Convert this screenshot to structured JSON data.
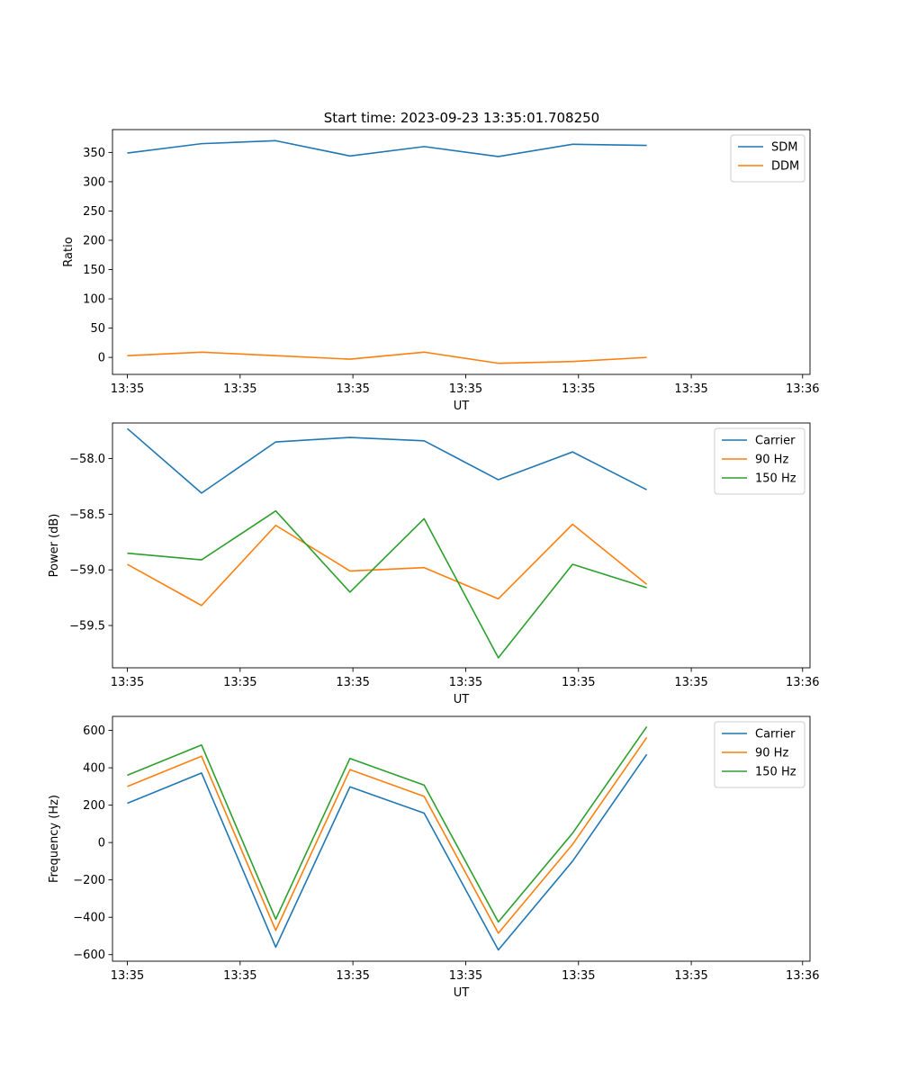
{
  "figure_title": "Start time: 2023-09-23 13:35:01.708250",
  "colors": {
    "blue": "#1f77b4",
    "orange": "#ff7f0e",
    "green": "#2ca02c"
  },
  "chart_data": [
    {
      "type": "line",
      "title": "Start time: 2023-09-23 13:35:01.708250",
      "xlabel": "UT",
      "ylabel": "Ratio",
      "x": [
        1,
        2,
        3,
        4,
        5,
        6,
        7,
        8
      ],
      "xlim": [
        0.8,
        10.2
      ],
      "xticks": [
        1,
        2.52,
        4.04,
        5.56,
        7.08,
        8.6,
        10.1
      ],
      "xtick_labels": [
        "13:35",
        "13:35",
        "13:35",
        "13:35",
        "13:35",
        "13:35",
        "13:36"
      ],
      "ylim": [
        -29,
        389
      ],
      "yticks": [
        0,
        50,
        100,
        150,
        200,
        250,
        300,
        350
      ],
      "ytick_labels": [
        "0",
        "50",
        "100",
        "150",
        "200",
        "250",
        "300",
        "350"
      ],
      "legend_position": "upper-right",
      "series": [
        {
          "name": "SDM",
          "color": "#1f77b4",
          "values": [
            349,
            365,
            370,
            344,
            360,
            343,
            364,
            362
          ]
        },
        {
          "name": "DDM",
          "color": "#ff7f0e",
          "values": [
            3,
            9,
            3,
            -3,
            9,
            -10,
            -7,
            0
          ]
        }
      ]
    },
    {
      "type": "line",
      "title": "",
      "xlabel": "UT",
      "ylabel": "Power (dB)",
      "x": [
        1,
        2,
        3,
        4,
        5,
        6,
        7,
        8
      ],
      "xlim": [
        0.8,
        10.2
      ],
      "xticks": [
        1,
        2.52,
        4.04,
        5.56,
        7.08,
        8.6,
        10.1
      ],
      "xtick_labels": [
        "13:35",
        "13:35",
        "13:35",
        "13:35",
        "13:35",
        "13:35",
        "13:36"
      ],
      "ylim": [
        -59.88,
        -57.68
      ],
      "yticks": [
        -59.5,
        -59.0,
        -58.5,
        -58.0
      ],
      "ytick_labels": [
        "−59.5",
        "−59.0",
        "−58.5",
        "−58.0"
      ],
      "legend_position": "upper-right",
      "series": [
        {
          "name": "Carrier",
          "color": "#1f77b4",
          "values": [
            -57.73,
            -58.31,
            -57.85,
            -57.81,
            -57.84,
            -58.19,
            -57.94,
            -58.28
          ]
        },
        {
          "name": "90 Hz",
          "color": "#ff7f0e",
          "values": [
            -58.95,
            -59.32,
            -58.6,
            -59.01,
            -58.98,
            -59.26,
            -58.59,
            -59.13
          ]
        },
        {
          "name": "150 Hz",
          "color": "#2ca02c",
          "values": [
            -58.85,
            -58.91,
            -58.47,
            -59.2,
            -58.54,
            -59.79,
            -58.95,
            -59.16
          ]
        }
      ]
    },
    {
      "type": "line",
      "title": "",
      "xlabel": "UT",
      "ylabel": "Frequency (Hz)",
      "x": [
        1,
        2,
        3,
        4,
        5,
        6,
        7,
        8
      ],
      "xlim": [
        0.8,
        10.2
      ],
      "xticks": [
        1,
        2.52,
        4.04,
        5.56,
        7.08,
        8.6,
        10.1
      ],
      "xtick_labels": [
        "13:35",
        "13:35",
        "13:35",
        "13:35",
        "13:35",
        "13:35",
        "13:36"
      ],
      "ylim": [
        -635,
        675
      ],
      "yticks": [
        -600,
        -400,
        -200,
        0,
        200,
        400,
        600
      ],
      "ytick_labels": [
        "−600",
        "−400",
        "−200",
        "0",
        "200",
        "400",
        "600"
      ],
      "legend_position": "upper-right",
      "series": [
        {
          "name": "Carrier",
          "color": "#1f77b4",
          "values": [
            210,
            372,
            -560,
            298,
            157,
            -575,
            -100,
            472
          ]
        },
        {
          "name": "90 Hz",
          "color": "#ff7f0e",
          "values": [
            300,
            462,
            -470,
            390,
            247,
            -485,
            -10,
            562
          ]
        },
        {
          "name": "150 Hz",
          "color": "#2ca02c",
          "values": [
            360,
            522,
            -410,
            450,
            307,
            -425,
            50,
            620
          ]
        }
      ]
    }
  ]
}
